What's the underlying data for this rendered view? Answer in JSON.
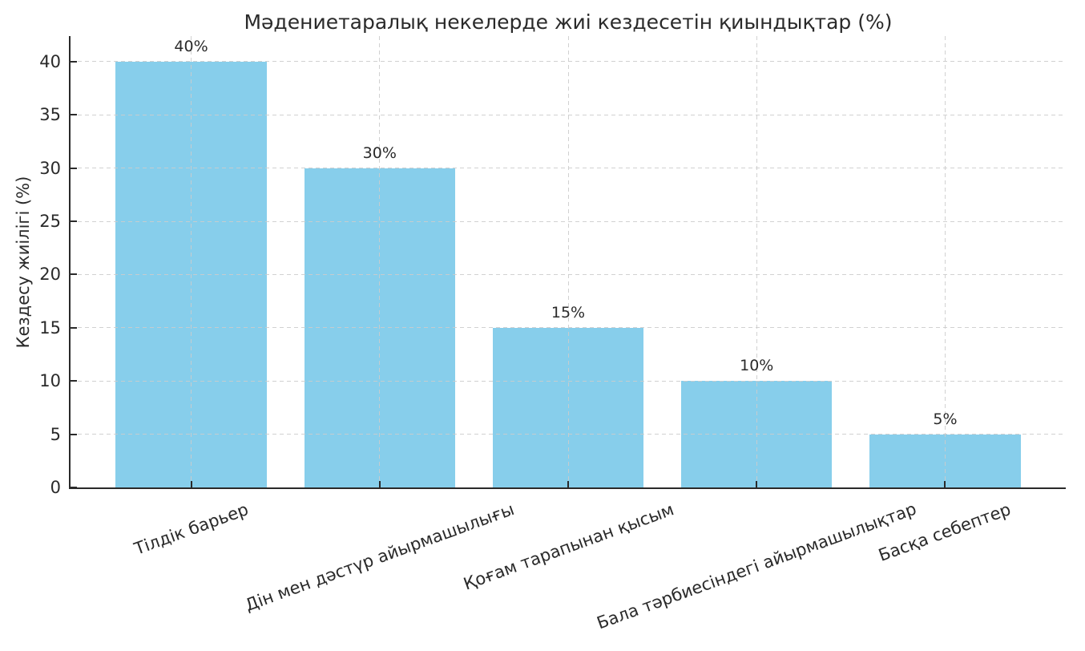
{
  "chart_data": {
    "type": "bar",
    "title": "Мәдениетаралық некелерде жиі кездесетін қиындықтар (%)",
    "ylabel": "Кездесу жиілігі (%)",
    "xlabel": "",
    "categories": [
      "Тілдік барьер",
      "Дін мен дәстүр айырмашылығы",
      "Қоғам тарапынан қысым",
      "Бала тәрбиесіндегі айырмашылықтар",
      "Басқа себептер"
    ],
    "values": [
      40,
      30,
      15,
      10,
      5
    ],
    "bar_labels": [
      "40%",
      "30%",
      "15%",
      "10%",
      "5%"
    ],
    "yticks": [
      0,
      5,
      10,
      15,
      20,
      25,
      30,
      35,
      40
    ],
    "ylim": [
      0,
      42.4
    ],
    "x_label_rotation_deg": 20,
    "grid": {
      "visible": true,
      "style": "dashed",
      "axis": "both",
      "color": "#cccccc"
    },
    "legend_position": "none",
    "colors": {
      "bar": "#87CEEB",
      "text": "#2a2a2a",
      "spine": "#2a2a2a",
      "background": "#ffffff"
    }
  }
}
